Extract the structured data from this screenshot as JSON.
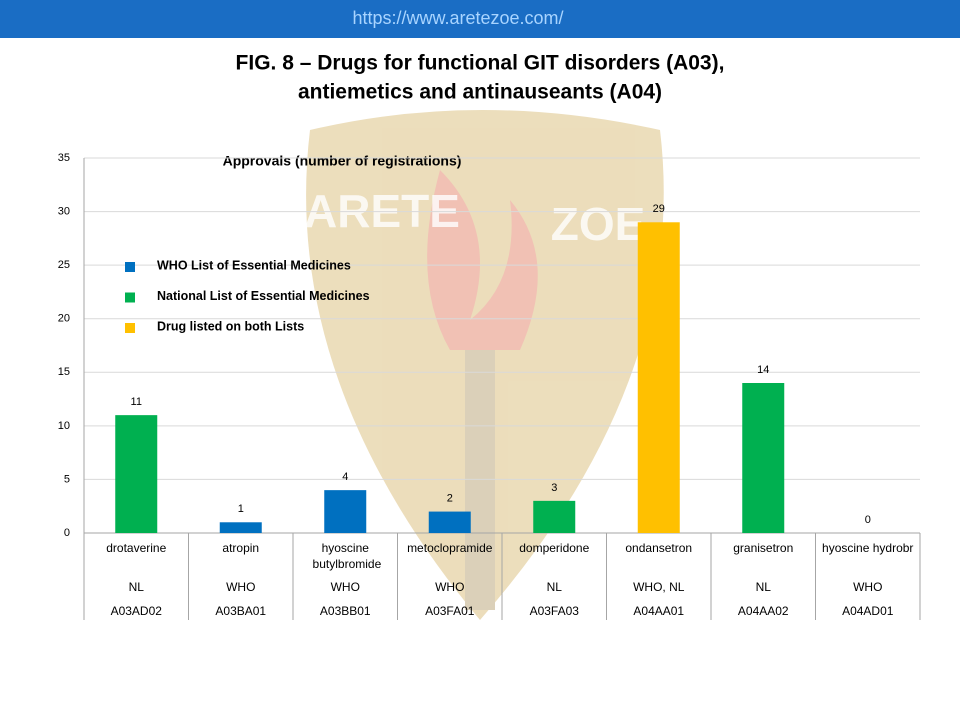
{
  "header": {
    "url": "https://www.aretezoe.com/"
  },
  "watermark": [
    "ARETE",
    "ZOE"
  ],
  "chart_data": {
    "type": "bar",
    "title": [
      "FIG. 8 – Drugs for functional GIT disorders (A03),",
      "antiemetics and antinauseants (A04)"
    ],
    "legend_title": "Approvals (number of registrations)",
    "legend": [
      {
        "name": "WHO List of Essential Medicines",
        "color": "#0070c0"
      },
      {
        "name": "National List of Essential Medicines",
        "color": "#00b050"
      },
      {
        "name": "Drug listed on both Lists",
        "color": "#ffc000"
      }
    ],
    "categories": [
      "drotaverine",
      "atropin",
      "hyoscine butylbromide",
      "metoclopramide",
      "domperidone",
      "ondansetron",
      "granisetron",
      "hyoscine hydrobr"
    ],
    "list_labels": [
      "NL",
      "WHO",
      "WHO",
      "WHO",
      "NL",
      "WHO, NL",
      "NL",
      "WHO"
    ],
    "atc_codes": [
      "A03AD02",
      "A03BA01",
      "A03BB01",
      "A03FA01",
      "A03FA03",
      "A04AA01",
      "A04AA02",
      "A04AD01"
    ],
    "values": [
      11,
      1,
      4,
      2,
      3,
      29,
      14,
      0
    ],
    "colors": [
      "#00b050",
      "#0070c0",
      "#0070c0",
      "#0070c0",
      "#00b050",
      "#ffc000",
      "#00b050",
      "#0070c0"
    ],
    "ylim": [
      0,
      35
    ],
    "yticks": [
      0,
      5,
      10,
      15,
      20,
      25,
      30,
      35
    ],
    "grid": true
  }
}
